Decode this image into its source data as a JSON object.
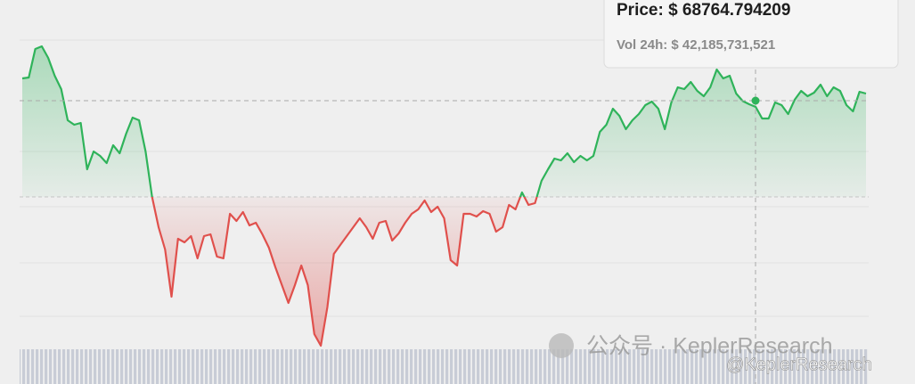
{
  "chart_data": {
    "type": "line",
    "values": [
      69655,
      69690,
      70810,
      70915,
      70460,
      69760,
      69235,
      68010,
      67835,
      67905,
      66085,
      66785,
      66610,
      66330,
      67030,
      66715,
      67485,
      68115,
      68010,
      66785,
      65000,
      63810,
      62935,
      61080,
      63355,
      63215,
      63460,
      62585,
      63460,
      63530,
      62655,
      62585,
      64335,
      64055,
      64405,
      63880,
      63985,
      63530,
      63005,
      62235,
      61535,
      60835,
      61535,
      62305,
      61535,
      59610,
      59155,
      60660,
      62760,
      63110,
      63460,
      63810,
      64160,
      63810,
      63355,
      63985,
      64055,
      63285,
      63565,
      63985,
      64335,
      64510,
      64860,
      64405,
      64615,
      64160,
      62515,
      62305,
      64335,
      64335,
      64230,
      64440,
      64335,
      63635,
      63810,
      64685,
      64510,
      65175,
      64685,
      64755,
      65630,
      66085,
      66505,
      66435,
      66715,
      66365,
      66610,
      66435,
      66610,
      67555,
      67835,
      68465,
      68185,
      67660,
      68010,
      68255,
      68605,
      68745,
      68465,
      67660,
      68710,
      69305,
      69235,
      69515,
      69165,
      68955,
      69305,
      70005,
      69655,
      69760,
      69060,
      68765,
      68640,
      68535,
      68080,
      68080,
      68710,
      68605,
      68255,
      68815,
      69165,
      68955,
      69095,
      69410,
      68955,
      69305,
      69165,
      68605,
      68360,
      69130,
      69060
    ],
    "baseline": 65000,
    "ylim": [
      57650,
      72735
    ],
    "up_color": "#2fb35a",
    "down_color": "#e0504c",
    "tooltip": {
      "price": "Price: $ 68764.794209",
      "volume": "Vol 24h: $ 42,185,731,521"
    },
    "watermark": {
      "main": "公众号 · KeplerResearch",
      "handle": "@KeplerResearch"
    }
  }
}
